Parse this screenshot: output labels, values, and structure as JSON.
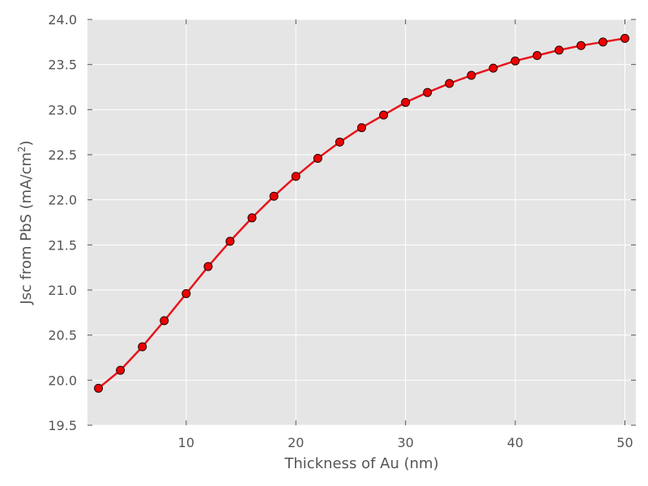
{
  "chart_data": {
    "type": "line",
    "xlabel": "Thickness of Au (nm)",
    "ylabel_main": "Jsc from PbS (mA/cm",
    "ylabel_sup": "2",
    "ylabel_end": ")",
    "xlim": [
      1,
      51
    ],
    "ylim": [
      19.5,
      24.0
    ],
    "xticks": [
      10,
      20,
      30,
      40,
      50
    ],
    "yticks": [
      19.5,
      20.0,
      20.5,
      21.0,
      21.5,
      22.0,
      22.5,
      23.0,
      23.5,
      24.0
    ],
    "grid": true,
    "background": "#e5e5e5",
    "line_color": "#e8141b",
    "marker_color": "#ee0000",
    "series": [
      {
        "x": [
          2,
          4,
          6,
          8,
          10,
          12,
          14,
          16,
          18,
          20,
          22,
          24,
          26,
          28,
          30,
          32,
          34,
          36,
          38,
          40,
          42,
          44,
          46,
          48,
          50
        ],
        "values": [
          19.91,
          20.11,
          20.37,
          20.66,
          20.96,
          21.26,
          21.54,
          21.8,
          22.04,
          22.26,
          22.46,
          22.64,
          22.8,
          22.94,
          23.08,
          23.19,
          23.29,
          23.38,
          23.46,
          23.54,
          23.6,
          23.66,
          23.71,
          23.75,
          23.79
        ]
      }
    ]
  }
}
